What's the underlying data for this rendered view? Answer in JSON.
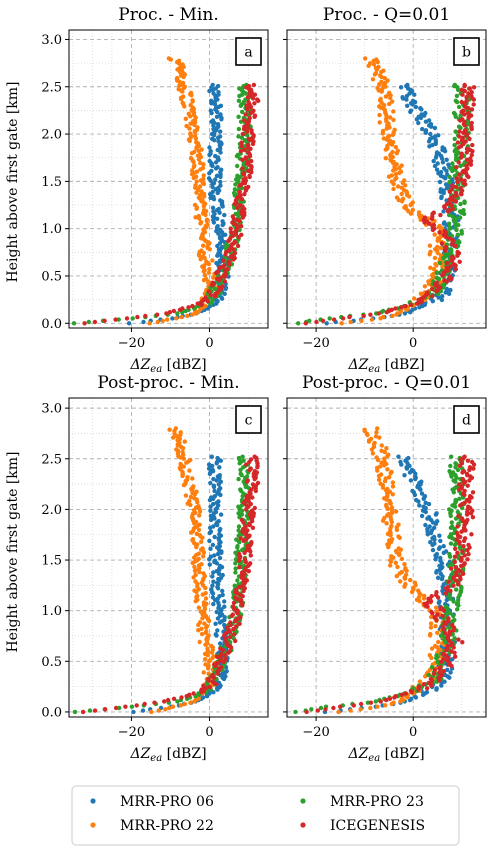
{
  "figure": {
    "ylabel": "Height above first gate [km]",
    "xlabel_prefix": "ΔZ",
    "xlabel_sub": "ea",
    "xlabel_unit": " [dBZ]"
  },
  "colors": {
    "MRR-PRO 06": "#1f77b4",
    "MRR-PRO 22": "#ff7f0e",
    "MRR-PRO 23": "#2ca02c",
    "ICEGENESIS": "#d62728"
  },
  "legend": {
    "entries": [
      "MRR-PRO 06",
      "MRR-PRO 22",
      "MRR-PRO 23",
      "ICEGENESIS"
    ],
    "placement": "bottom-center"
  },
  "chart_data": [
    {
      "type": "scatter",
      "title": "Proc. - Min.",
      "letter": "a",
      "xlim": [
        -36,
        15
      ],
      "ylim": [
        -0.05,
        3.1
      ],
      "xticks": [
        -20,
        0
      ],
      "yticks": [
        0.0,
        0.5,
        1.0,
        1.5,
        2.0,
        2.5,
        3.0
      ],
      "grid": true,
      "series": [
        {
          "name": "MRR-PRO 06",
          "top": 2.52,
          "profile": [
            [
              0.0,
              -20
            ],
            [
              0.05,
              -10
            ],
            [
              0.1,
              -4
            ],
            [
              0.15,
              -1
            ],
            [
              0.2,
              1
            ],
            [
              0.3,
              2.5
            ],
            [
              0.5,
              3.5
            ],
            [
              1.0,
              2.5
            ],
            [
              1.5,
              1.5
            ],
            [
              2.0,
              1.5
            ],
            [
              2.5,
              1.5
            ]
          ]
        },
        {
          "name": "MRR-PRO 22",
          "top": 2.8,
          "profile": [
            [
              0.0,
              -15
            ],
            [
              0.05,
              -9
            ],
            [
              0.1,
              -4
            ],
            [
              0.2,
              -1
            ],
            [
              0.3,
              0
            ],
            [
              0.5,
              0
            ],
            [
              0.7,
              -1
            ],
            [
              1.0,
              -2
            ],
            [
              1.3,
              -2.5
            ],
            [
              1.7,
              -3
            ],
            [
              2.0,
              -4
            ],
            [
              2.4,
              -6
            ],
            [
              2.6,
              -7
            ],
            [
              2.8,
              -9
            ]
          ]
        },
        {
          "name": "MRR-PRO 23",
          "top": 2.52,
          "profile": [
            [
              0.0,
              -35
            ],
            [
              0.05,
              -20
            ],
            [
              0.1,
              -8
            ],
            [
              0.2,
              -1
            ],
            [
              0.3,
              1
            ],
            [
              0.5,
              3
            ],
            [
              0.7,
              5
            ],
            [
              1.0,
              7
            ],
            [
              1.5,
              8
            ],
            [
              2.0,
              9
            ],
            [
              2.3,
              9
            ],
            [
              2.5,
              9
            ]
          ]
        },
        {
          "name": "ICEGENESIS",
          "top": 2.52,
          "profile": [
            [
              0.0,
              -32
            ],
            [
              0.05,
              -22
            ],
            [
              0.1,
              -12
            ],
            [
              0.2,
              -2
            ],
            [
              0.3,
              1
            ],
            [
              0.5,
              3
            ],
            [
              0.7,
              5
            ],
            [
              1.0,
              7
            ],
            [
              1.5,
              9
            ],
            [
              2.0,
              10
            ],
            [
              2.3,
              11
            ],
            [
              2.5,
              11
            ]
          ]
        }
      ]
    },
    {
      "type": "scatter",
      "title": "Proc. - Q=0.01",
      "letter": "b",
      "xlim": [
        -26,
        15
      ],
      "ylim": [
        -0.05,
        3.1
      ],
      "xticks": [
        -20,
        0
      ],
      "yticks": [
        0.0,
        0.5,
        1.0,
        1.5,
        2.0,
        2.5,
        3.0
      ],
      "grid": true,
      "series": [
        {
          "name": "MRR-PRO 06",
          "top": 2.52,
          "profile": [
            [
              0.0,
              -18
            ],
            [
              0.05,
              -8
            ],
            [
              0.1,
              -2
            ],
            [
              0.2,
              3
            ],
            [
              0.3,
              6
            ],
            [
              0.5,
              7
            ],
            [
              1.0,
              8
            ],
            [
              1.5,
              7
            ],
            [
              2.0,
              4
            ],
            [
              2.3,
              0
            ],
            [
              2.5,
              -2
            ]
          ]
        },
        {
          "name": "MRR-PRO 22",
          "top": 2.8,
          "profile": [
            [
              0.0,
              -15
            ],
            [
              0.05,
              -7
            ],
            [
              0.1,
              -3
            ],
            [
              0.2,
              0
            ],
            [
              0.3,
              3
            ],
            [
              0.5,
              5
            ],
            [
              0.7,
              5
            ],
            [
              1.0,
              5
            ],
            [
              1.2,
              0
            ],
            [
              1.4,
              -3
            ],
            [
              1.7,
              -4
            ],
            [
              2.0,
              -5
            ],
            [
              2.4,
              -6
            ],
            [
              2.6,
              -7
            ],
            [
              2.8,
              -9
            ]
          ]
        },
        {
          "name": "MRR-PRO 23",
          "top": 2.52,
          "profile": [
            [
              0.0,
              -24
            ],
            [
              0.05,
              -18
            ],
            [
              0.1,
              -8
            ],
            [
              0.2,
              0
            ],
            [
              0.3,
              4
            ],
            [
              0.5,
              6
            ],
            [
              0.7,
              7
            ],
            [
              1.0,
              9
            ],
            [
              1.5,
              9
            ],
            [
              2.0,
              10
            ],
            [
              2.3,
              10
            ],
            [
              2.5,
              10
            ]
          ]
        },
        {
          "name": "ICEGENESIS",
          "top": 2.52,
          "profile": [
            [
              0.0,
              -22
            ],
            [
              0.05,
              -15
            ],
            [
              0.1,
              -7
            ],
            [
              0.2,
              0
            ],
            [
              0.3,
              4
            ],
            [
              0.5,
              7
            ],
            [
              0.7,
              9
            ],
            [
              1.0,
              5
            ],
            [
              1.1,
              3
            ],
            [
              1.25,
              8
            ],
            [
              1.5,
              10
            ],
            [
              2.0,
              11
            ],
            [
              2.5,
              11
            ]
          ]
        }
      ]
    },
    {
      "type": "scatter",
      "title": "Post-proc. - Min.",
      "letter": "c",
      "xlim": [
        -36,
        15
      ],
      "ylim": [
        -0.05,
        3.1
      ],
      "xticks": [
        -20,
        0
      ],
      "yticks": [
        0.0,
        0.5,
        1.0,
        1.5,
        2.0,
        2.5,
        3.0
      ],
      "grid": true,
      "series": [
        {
          "name": "MRR-PRO 06",
          "top": 2.52,
          "profile": [
            [
              0.0,
              -20
            ],
            [
              0.05,
              -10
            ],
            [
              0.1,
              -4
            ],
            [
              0.15,
              -1
            ],
            [
              0.2,
              1
            ],
            [
              0.3,
              2.5
            ],
            [
              0.5,
              3.5
            ],
            [
              1.0,
              2.5
            ],
            [
              1.5,
              1.5
            ],
            [
              2.0,
              1.5
            ],
            [
              2.5,
              1.5
            ]
          ]
        },
        {
          "name": "MRR-PRO 22",
          "top": 2.8,
          "profile": [
            [
              0.0,
              -15
            ],
            [
              0.05,
              -9
            ],
            [
              0.1,
              -4
            ],
            [
              0.2,
              -1
            ],
            [
              0.3,
              0
            ],
            [
              0.5,
              0
            ],
            [
              0.7,
              -1
            ],
            [
              1.0,
              -2
            ],
            [
              1.3,
              -2.5
            ],
            [
              1.7,
              -3
            ],
            [
              2.0,
              -4
            ],
            [
              2.4,
              -6
            ],
            [
              2.6,
              -7
            ],
            [
              2.8,
              -9
            ]
          ]
        },
        {
          "name": "MRR-PRO 23",
          "top": 2.52,
          "profile": [
            [
              0.0,
              -35
            ],
            [
              0.05,
              -20
            ],
            [
              0.1,
              -8
            ],
            [
              0.2,
              -1
            ],
            [
              0.3,
              1
            ],
            [
              0.5,
              3
            ],
            [
              0.7,
              5
            ],
            [
              1.0,
              7
            ],
            [
              1.5,
              8
            ],
            [
              2.0,
              9
            ],
            [
              2.3,
              9
            ],
            [
              2.5,
              9
            ]
          ]
        },
        {
          "name": "ICEGENESIS",
          "top": 2.52,
          "profile": [
            [
              0.0,
              -32
            ],
            [
              0.05,
              -22
            ],
            [
              0.1,
              -12
            ],
            [
              0.2,
              -2
            ],
            [
              0.3,
              1
            ],
            [
              0.5,
              3
            ],
            [
              0.7,
              5
            ],
            [
              1.0,
              7
            ],
            [
              1.5,
              9
            ],
            [
              2.0,
              10
            ],
            [
              2.3,
              11
            ],
            [
              2.5,
              11
            ]
          ]
        }
      ]
    },
    {
      "type": "scatter",
      "title": "Post-proc. - Q=0.01",
      "letter": "d",
      "xlim": [
        -26,
        15
      ],
      "ylim": [
        -0.05,
        3.1
      ],
      "xticks": [
        -20,
        0
      ],
      "yticks": [
        0.0,
        0.5,
        1.0,
        1.5,
        2.0,
        2.5,
        3.0
      ],
      "grid": true,
      "series": [
        {
          "name": "MRR-PRO 06",
          "top": 2.52,
          "profile": [
            [
              0.0,
              -18
            ],
            [
              0.05,
              -8
            ],
            [
              0.1,
              -2
            ],
            [
              0.2,
              3
            ],
            [
              0.3,
              6
            ],
            [
              0.5,
              7
            ],
            [
              1.0,
              7
            ],
            [
              1.5,
              6
            ],
            [
              2.0,
              3
            ],
            [
              2.3,
              0
            ],
            [
              2.5,
              -2
            ]
          ]
        },
        {
          "name": "MRR-PRO 22",
          "top": 2.8,
          "profile": [
            [
              0.0,
              -15
            ],
            [
              0.05,
              -7
            ],
            [
              0.1,
              -3
            ],
            [
              0.2,
              0
            ],
            [
              0.3,
              3
            ],
            [
              0.5,
              5
            ],
            [
              0.7,
              5
            ],
            [
              1.0,
              5
            ],
            [
              1.2,
              0
            ],
            [
              1.4,
              -3
            ],
            [
              1.7,
              -4
            ],
            [
              2.0,
              -5
            ],
            [
              2.4,
              -6
            ],
            [
              2.6,
              -7
            ],
            [
              2.8,
              -9
            ]
          ]
        },
        {
          "name": "MRR-PRO 23",
          "top": 2.52,
          "profile": [
            [
              0.0,
              -24
            ],
            [
              0.05,
              -18
            ],
            [
              0.1,
              -8
            ],
            [
              0.2,
              0
            ],
            [
              0.3,
              4
            ],
            [
              0.5,
              6
            ],
            [
              0.7,
              7
            ],
            [
              1.0,
              8
            ],
            [
              1.5,
              9
            ],
            [
              2.0,
              9
            ],
            [
              2.3,
              9
            ],
            [
              2.5,
              9
            ]
          ]
        },
        {
          "name": "ICEGENESIS",
          "top": 2.52,
          "profile": [
            [
              0.0,
              -22
            ],
            [
              0.05,
              -15
            ],
            [
              0.1,
              -7
            ],
            [
              0.2,
              0
            ],
            [
              0.3,
              4
            ],
            [
              0.5,
              7
            ],
            [
              0.7,
              9
            ],
            [
              1.0,
              5
            ],
            [
              1.1,
              3
            ],
            [
              1.25,
              8
            ],
            [
              1.5,
              10
            ],
            [
              2.0,
              11
            ],
            [
              2.5,
              11
            ]
          ]
        }
      ]
    }
  ]
}
